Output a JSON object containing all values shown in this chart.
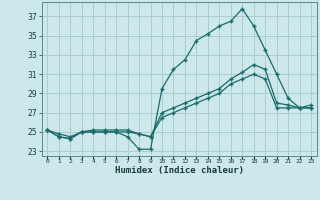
{
  "xlabel": "Humidex (Indice chaleur)",
  "bg_color": "#cce8ea",
  "grid_color": "#aacdd0",
  "line_color": "#1a6b6b",
  "x_hours": [
    0,
    1,
    2,
    3,
    4,
    5,
    6,
    7,
    8,
    9,
    10,
    11,
    12,
    13,
    14,
    15,
    16,
    17,
    18,
    19,
    20,
    21,
    22,
    23
  ],
  "line1": [
    25.2,
    24.5,
    24.3,
    25.0,
    25.0,
    25.0,
    25.0,
    24.5,
    23.2,
    23.2,
    29.5,
    31.5,
    32.5,
    34.5,
    35.2,
    36.0,
    36.5,
    37.8,
    36.0,
    33.5,
    31.0,
    28.5,
    27.5,
    27.5
  ],
  "line2": [
    25.2,
    24.8,
    24.5,
    25.0,
    25.2,
    25.2,
    25.2,
    25.2,
    24.8,
    24.5,
    27.0,
    27.5,
    28.0,
    28.5,
    29.0,
    29.5,
    30.5,
    31.2,
    32.0,
    31.5,
    28.0,
    27.8,
    27.5,
    27.8
  ],
  "line3": [
    25.2,
    24.5,
    24.3,
    25.0,
    25.0,
    25.0,
    25.0,
    25.0,
    24.8,
    24.5,
    26.5,
    27.0,
    27.5,
    28.0,
    28.5,
    29.0,
    30.0,
    30.5,
    31.0,
    30.5,
    27.5,
    27.5,
    27.5,
    27.5
  ],
  "ylim": [
    22.5,
    38.5
  ],
  "xlim": [
    -0.5,
    23.5
  ],
  "yticks": [
    23,
    25,
    27,
    29,
    31,
    33,
    35,
    37
  ]
}
